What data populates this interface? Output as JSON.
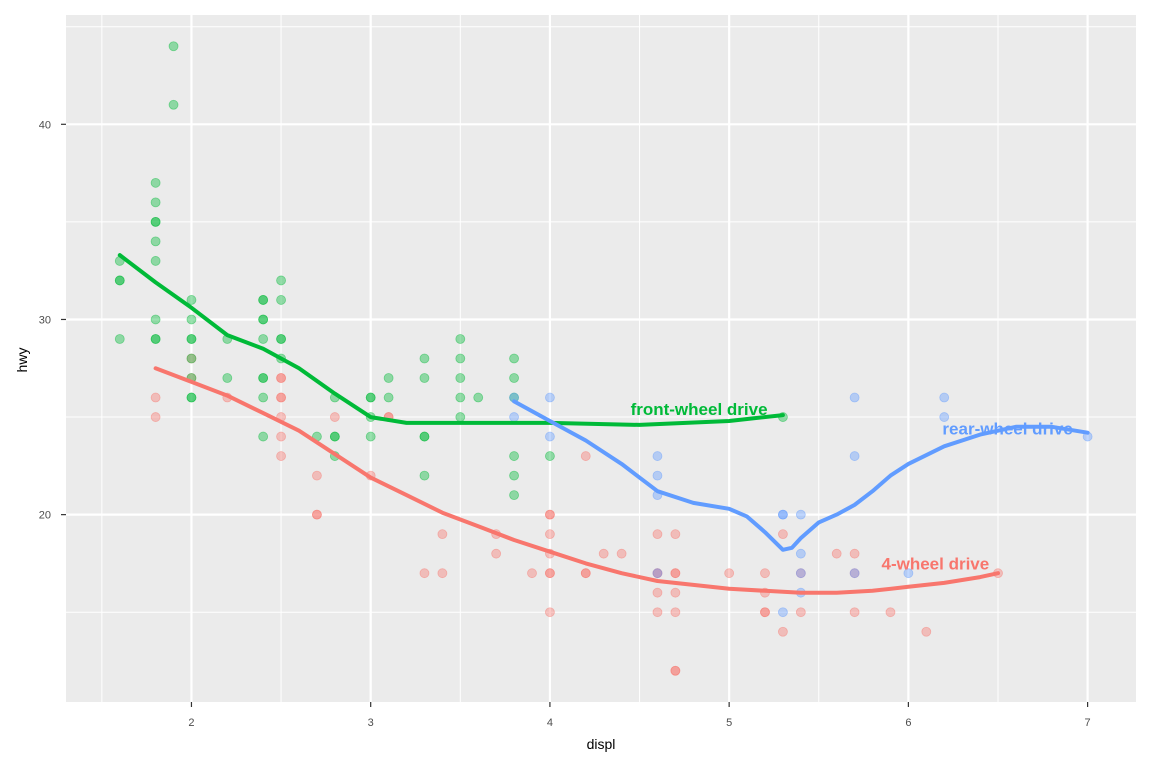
{
  "chart_data": {
    "type": "scatter",
    "title": "",
    "xlabel": "displ",
    "ylabel": "hwy",
    "xlim": [
      1.3,
      7.27
    ],
    "ylim": [
      10.4,
      45.6
    ],
    "x_major_ticks": [
      2,
      3,
      4,
      5,
      6,
      7
    ],
    "x_minor_ticks": [
      1.5,
      2.5,
      3.5,
      4.5,
      5.5,
      6.5
    ],
    "y_major_ticks": [
      20,
      30,
      40
    ],
    "y_minor_ticks": [
      15,
      25,
      35,
      45
    ],
    "background_color": "#EBEBEB",
    "grid": true,
    "legend": "none",
    "colors": {
      "4": "#F8766D",
      "f": "#00BA38",
      "r": "#619CFF"
    },
    "series": [
      {
        "key": "4",
        "name": "4-wheel drive",
        "points": [
          [
            1.8,
            26
          ],
          [
            1.8,
            25
          ],
          [
            2.0,
            28
          ],
          [
            2.0,
            27
          ],
          [
            2.2,
            26
          ],
          [
            2.5,
            27
          ],
          [
            2.5,
            27
          ],
          [
            2.5,
            26
          ],
          [
            2.5,
            26
          ],
          [
            2.5,
            25
          ],
          [
            2.5,
            24
          ],
          [
            2.5,
            23
          ],
          [
            2.7,
            22
          ],
          [
            2.7,
            20
          ],
          [
            2.7,
            20
          ],
          [
            2.8,
            25
          ],
          [
            3.0,
            22
          ],
          [
            3.1,
            25
          ],
          [
            3.1,
            25
          ],
          [
            3.3,
            17
          ],
          [
            3.4,
            19
          ],
          [
            3.4,
            17
          ],
          [
            3.7,
            19
          ],
          [
            3.7,
            18
          ],
          [
            3.9,
            17
          ],
          [
            4.0,
            20
          ],
          [
            4.0,
            20
          ],
          [
            4.0,
            19
          ],
          [
            4.0,
            18
          ],
          [
            4.0,
            17
          ],
          [
            4.0,
            17
          ],
          [
            4.0,
            15
          ],
          [
            4.2,
            23
          ],
          [
            4.2,
            17
          ],
          [
            4.2,
            17
          ],
          [
            4.3,
            18
          ],
          [
            4.4,
            18
          ],
          [
            4.6,
            19
          ],
          [
            4.6,
            17
          ],
          [
            4.6,
            17
          ],
          [
            4.6,
            16
          ],
          [
            4.6,
            15
          ],
          [
            4.7,
            19
          ],
          [
            4.7,
            17
          ],
          [
            4.7,
            17
          ],
          [
            4.7,
            16
          ],
          [
            4.7,
            15
          ],
          [
            4.7,
            12
          ],
          [
            4.7,
            12
          ],
          [
            5.0,
            17
          ],
          [
            5.2,
            17
          ],
          [
            5.2,
            16
          ],
          [
            5.2,
            15
          ],
          [
            5.2,
            15
          ],
          [
            5.3,
            19
          ],
          [
            5.3,
            14
          ],
          [
            5.4,
            17
          ],
          [
            5.4,
            15
          ],
          [
            5.6,
            18
          ],
          [
            5.7,
            18
          ],
          [
            5.7,
            17
          ],
          [
            5.7,
            15
          ],
          [
            5.9,
            15
          ],
          [
            6.1,
            14
          ],
          [
            6.5,
            17
          ]
        ],
        "smooth": [
          [
            1.8,
            27.5
          ],
          [
            2.0,
            26.8
          ],
          [
            2.2,
            26.1
          ],
          [
            2.4,
            25.2
          ],
          [
            2.6,
            24.3
          ],
          [
            2.8,
            23.1
          ],
          [
            3.0,
            21.9
          ],
          [
            3.2,
            21.0
          ],
          [
            3.4,
            20.1
          ],
          [
            3.6,
            19.4
          ],
          [
            3.8,
            18.7
          ],
          [
            4.0,
            18.1
          ],
          [
            4.2,
            17.5
          ],
          [
            4.4,
            17.0
          ],
          [
            4.6,
            16.6
          ],
          [
            4.8,
            16.4
          ],
          [
            5.0,
            16.2
          ],
          [
            5.2,
            16.1
          ],
          [
            5.4,
            16.0
          ],
          [
            5.6,
            16.0
          ],
          [
            5.8,
            16.1
          ],
          [
            6.0,
            16.3
          ],
          [
            6.2,
            16.5
          ],
          [
            6.4,
            16.8
          ],
          [
            6.5,
            17.0
          ]
        ],
        "label": "4-wheel drive",
        "label_at": [
          5.85,
          17.2
        ]
      },
      {
        "key": "f",
        "name": "front-wheel drive",
        "points": [
          [
            1.6,
            33
          ],
          [
            1.6,
            32
          ],
          [
            1.6,
            32
          ],
          [
            1.6,
            29
          ],
          [
            1.8,
            37
          ],
          [
            1.8,
            36
          ],
          [
            1.8,
            35
          ],
          [
            1.8,
            35
          ],
          [
            1.8,
            34
          ],
          [
            1.8,
            33
          ],
          [
            1.8,
            30
          ],
          [
            1.8,
            29
          ],
          [
            1.8,
            29
          ],
          [
            1.9,
            44
          ],
          [
            1.9,
            41
          ],
          [
            2.0,
            31
          ],
          [
            2.0,
            30
          ],
          [
            2.0,
            29
          ],
          [
            2.0,
            29
          ],
          [
            2.0,
            28
          ],
          [
            2.0,
            27
          ],
          [
            2.0,
            26
          ],
          [
            2.0,
            26
          ],
          [
            2.2,
            29
          ],
          [
            2.2,
            27
          ],
          [
            2.4,
            31
          ],
          [
            2.4,
            31
          ],
          [
            2.4,
            30
          ],
          [
            2.4,
            30
          ],
          [
            2.4,
            29
          ],
          [
            2.4,
            27
          ],
          [
            2.4,
            27
          ],
          [
            2.4,
            26
          ],
          [
            2.4,
            24
          ],
          [
            2.5,
            32
          ],
          [
            2.5,
            31
          ],
          [
            2.5,
            29
          ],
          [
            2.5,
            29
          ],
          [
            2.5,
            28
          ],
          [
            2.7,
            24
          ],
          [
            2.8,
            26
          ],
          [
            2.8,
            24
          ],
          [
            2.8,
            24
          ],
          [
            2.8,
            23
          ],
          [
            3.0,
            26
          ],
          [
            3.0,
            26
          ],
          [
            3.0,
            25
          ],
          [
            3.0,
            24
          ],
          [
            3.1,
            27
          ],
          [
            3.1,
            26
          ],
          [
            3.3,
            28
          ],
          [
            3.3,
            27
          ],
          [
            3.3,
            24
          ],
          [
            3.3,
            24
          ],
          [
            3.3,
            22
          ],
          [
            3.5,
            29
          ],
          [
            3.5,
            28
          ],
          [
            3.5,
            27
          ],
          [
            3.5,
            26
          ],
          [
            3.5,
            25
          ],
          [
            3.6,
            26
          ],
          [
            3.8,
            28
          ],
          [
            3.8,
            27
          ],
          [
            3.8,
            26
          ],
          [
            3.8,
            23
          ],
          [
            3.8,
            22
          ],
          [
            3.8,
            21
          ],
          [
            4.0,
            23
          ],
          [
            5.3,
            25
          ]
        ],
        "smooth": [
          [
            1.6,
            33.3
          ],
          [
            1.8,
            31.9
          ],
          [
            2.0,
            30.6
          ],
          [
            2.2,
            29.2
          ],
          [
            2.4,
            28.5
          ],
          [
            2.6,
            27.5
          ],
          [
            2.8,
            26.2
          ],
          [
            3.0,
            25.0
          ],
          [
            3.2,
            24.7
          ],
          [
            3.5,
            24.7
          ],
          [
            3.8,
            24.7
          ],
          [
            4.0,
            24.7
          ],
          [
            4.5,
            24.6
          ],
          [
            5.0,
            24.8
          ],
          [
            5.3,
            25.1
          ]
        ],
        "label": "front-wheel drive",
        "label_at": [
          4.45,
          25.1
        ]
      },
      {
        "key": "r",
        "name": "rear-wheel drive",
        "points": [
          [
            3.8,
            26
          ],
          [
            3.8,
            25
          ],
          [
            4.0,
            26
          ],
          [
            4.0,
            24
          ],
          [
            4.6,
            23
          ],
          [
            4.6,
            22
          ],
          [
            4.6,
            21
          ],
          [
            4.6,
            17
          ],
          [
            5.3,
            20
          ],
          [
            5.3,
            20
          ],
          [
            5.3,
            15
          ],
          [
            5.4,
            20
          ],
          [
            5.4,
            18
          ],
          [
            5.4,
            17
          ],
          [
            5.4,
            16
          ],
          [
            5.7,
            26
          ],
          [
            5.7,
            23
          ],
          [
            5.7,
            17
          ],
          [
            6.0,
            17
          ],
          [
            6.2,
            26
          ],
          [
            6.2,
            25
          ],
          [
            7.0,
            24
          ]
        ],
        "smooth": [
          [
            3.8,
            25.8
          ],
          [
            4.0,
            24.8
          ],
          [
            4.2,
            23.8
          ],
          [
            4.4,
            22.6
          ],
          [
            4.6,
            21.2
          ],
          [
            4.8,
            20.6
          ],
          [
            5.0,
            20.3
          ],
          [
            5.1,
            19.9
          ],
          [
            5.2,
            19.1
          ],
          [
            5.3,
            18.2
          ],
          [
            5.35,
            18.3
          ],
          [
            5.4,
            18.8
          ],
          [
            5.5,
            19.6
          ],
          [
            5.6,
            20.0
          ],
          [
            5.7,
            20.5
          ],
          [
            5.8,
            21.2
          ],
          [
            5.9,
            22.0
          ],
          [
            6.0,
            22.6
          ],
          [
            6.2,
            23.5
          ],
          [
            6.4,
            24.1
          ],
          [
            6.6,
            24.5
          ],
          [
            6.8,
            24.5
          ],
          [
            7.0,
            24.2
          ]
        ],
        "label": "rear-wheel drive",
        "label_at": [
          6.19,
          24.1
        ]
      }
    ]
  }
}
